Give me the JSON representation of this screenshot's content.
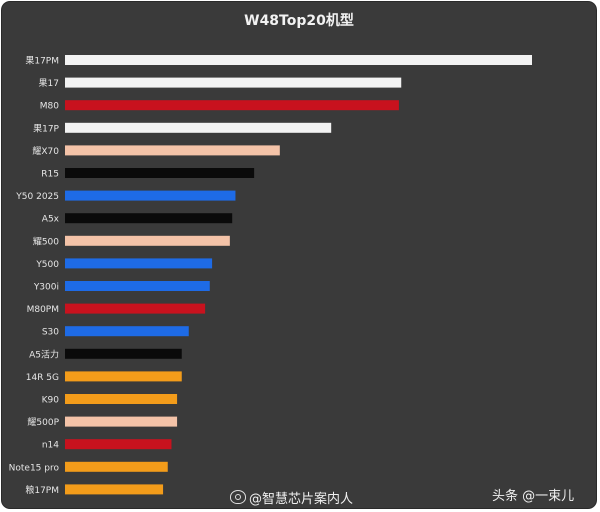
{
  "chart_data": {
    "type": "bar",
    "orientation": "horizontal",
    "title": "W48Top20机型",
    "xlabel": "",
    "ylabel": "",
    "grid": false,
    "xlim": [
      0,
      100
    ],
    "categories": [
      "果17PM",
      "果17",
      "M80",
      "果17P",
      "耀X70",
      "R15",
      "Y50 2025",
      "A5x",
      "耀500",
      "Y500",
      "Y300i",
      "M80PM",
      "S30",
      "A5活力",
      "14R 5G",
      "K90",
      "耀500P",
      "n14",
      "Note15 pro",
      "粮17PM"
    ],
    "values": [
      100,
      72,
      71.5,
      57,
      46,
      40.5,
      36.5,
      35.8,
      35.3,
      31.5,
      31,
      30,
      26.5,
      25,
      25,
      24,
      24,
      22.8,
      22,
      21
    ],
    "colors": [
      "#f2f2f2",
      "#f2f2f2",
      "#c8121e",
      "#f2f2f2",
      "#f4c3a8",
      "#0a0a0a",
      "#1e6be6",
      "#0a0a0a",
      "#f4c3a8",
      "#1e6be6",
      "#1e6be6",
      "#c8121e",
      "#1e6be6",
      "#0a0a0a",
      "#f39c1a",
      "#f39c1a",
      "#f4c3a8",
      "#c8121e",
      "#f39c1a",
      "#f39c1a"
    ]
  },
  "watermarks": {
    "weibo": "@智慧芯片案内人",
    "toutiao": "头条 @一束儿"
  }
}
